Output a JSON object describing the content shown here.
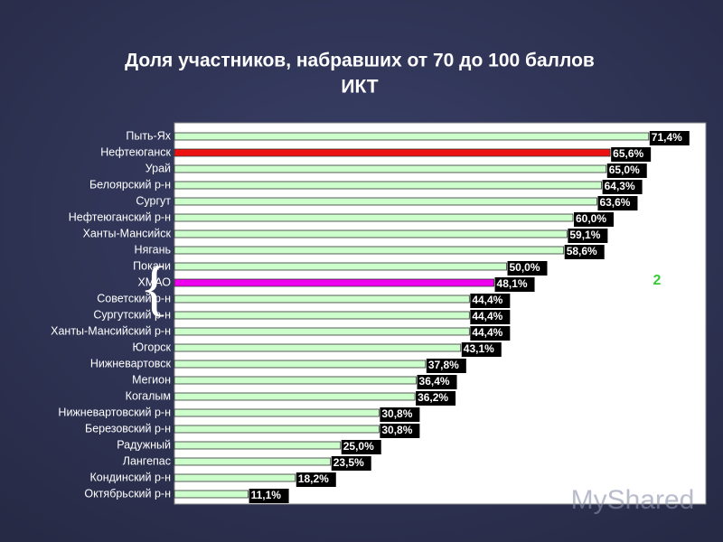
{
  "chart_data": {
    "type": "barh",
    "title": "Доля участников, набравших от 70 до 100 баллов",
    "subtitle": "ИКТ",
    "categories": [
      "Пыть-Ях",
      "Нефтеюганск",
      "Урай",
      "Белоярский р-н",
      "Сургут",
      "Нефтеюганский р-н",
      "Ханты-Мансийск",
      "Нягань",
      "Покачи",
      "ХМАО",
      "Советский р-н",
      "Сургутский р-н",
      "Ханты-Мансийский р-н",
      "Югорск",
      "Нижневартовск",
      "Мегион",
      "Когалым",
      "Нижневартовский р-н",
      "Березовский р-н",
      "Радужный",
      "Лангепас",
      "Кондинский р-н",
      "Октябрьский р-н"
    ],
    "values": [
      71.4,
      65.6,
      65.0,
      64.3,
      63.6,
      60.0,
      59.1,
      58.6,
      50.0,
      48.1,
      44.4,
      44.4,
      44.4,
      43.1,
      37.8,
      36.4,
      36.2,
      30.8,
      30.8,
      25.0,
      23.5,
      18.2,
      11.1
    ],
    "value_labels": [
      "71,4%",
      "65,6%",
      "65,0%",
      "64,3%",
      "63,6%",
      "60,0%",
      "59,1%",
      "58,6%",
      "50,0%",
      "48,1%",
      "44,4%",
      "44,4%",
      "44,4%",
      "43,1%",
      "37,8%",
      "36,4%",
      "36,2%",
      "30,8%",
      "30,8%",
      "25,0%",
      "23,5%",
      "18,2%",
      "11,1%"
    ],
    "colors": [
      "#ccffcc",
      "#ee1111",
      "#ccffcc",
      "#ccffcc",
      "#ccffcc",
      "#ccffcc",
      "#ccffcc",
      "#ccffcc",
      "#ccffcc",
      "#ee00ee",
      "#ccffcc",
      "#ccffcc",
      "#ccffcc",
      "#ccffcc",
      "#ccffcc",
      "#ccffcc",
      "#ccffcc",
      "#ccffcc",
      "#ccffcc",
      "#ccffcc",
      "#ccffcc",
      "#ccffcc",
      "#ccffcc"
    ],
    "xlim": [
      0,
      80
    ],
    "annotation": "2",
    "watermark": "MyShared"
  }
}
